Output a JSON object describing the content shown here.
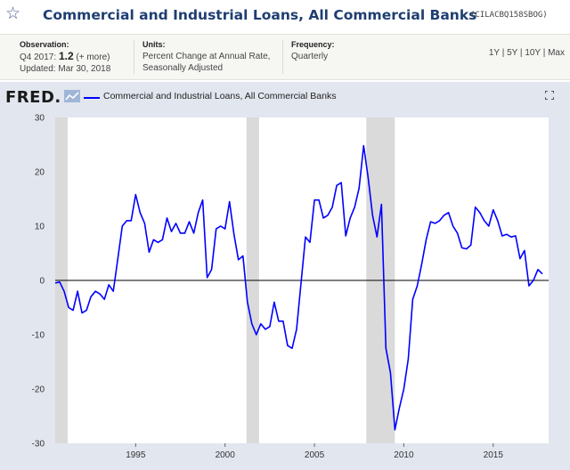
{
  "header": {
    "title": "Commercial and Industrial Loans, All Commercial Banks",
    "series_id": "(CILACBQ158SBOG)"
  },
  "meta": {
    "observation_label": "Observation:",
    "observation_period": "Q4 2017:",
    "observation_value": "1.2",
    "observation_more": "(+ more)",
    "updated": "Updated: Mar 30, 2018",
    "units_label": "Units:",
    "units_line1": "Percent Change at Annual Rate,",
    "units_line2": "Seasonally Adjusted",
    "frequency_label": "Frequency:",
    "frequency_value": "Quarterly"
  },
  "ranges": [
    "1Y",
    "5Y",
    "10Y",
    "Max"
  ],
  "logo": "FRED",
  "colors": {
    "series": "#0000ff",
    "title": "#1f3e72",
    "recession": "#dadada",
    "plot_bg": "#ffffff",
    "frame_bg": "#e2e6ef"
  },
  "chart_data": {
    "type": "line",
    "title": "Commercial and Industrial Loans, All Commercial Banks",
    "ylabel": "",
    "xlabel": "",
    "ylim": [
      -30,
      30
    ],
    "xlim": [
      1990.5,
      2018.1
    ],
    "y_ticks": [
      30,
      20,
      10,
      0,
      -10,
      -20,
      -30
    ],
    "x_ticks": [
      1995,
      2000,
      2005,
      2010,
      2015
    ],
    "zero_line": true,
    "recessions": [
      [
        1990.5,
        1991.2
      ],
      [
        2001.2,
        2001.9
      ],
      [
        2007.9,
        2009.5
      ]
    ],
    "series": [
      {
        "name": "Commercial and Industrial Loans, All Commercial Banks",
        "x": [
          1990.5,
          1990.75,
          1991.0,
          1991.25,
          1991.5,
          1991.75,
          1992.0,
          1992.25,
          1992.5,
          1992.75,
          1993.0,
          1993.25,
          1993.5,
          1993.75,
          1994.0,
          1994.25,
          1994.5,
          1994.75,
          1995.0,
          1995.25,
          1995.5,
          1995.75,
          1996.0,
          1996.25,
          1996.5,
          1996.75,
          1997.0,
          1997.25,
          1997.5,
          1997.75,
          1998.0,
          1998.25,
          1998.5,
          1998.75,
          1999.0,
          1999.25,
          1999.5,
          1999.75,
          2000.0,
          2000.25,
          2000.5,
          2000.75,
          2001.0,
          2001.25,
          2001.5,
          2001.75,
          2002.0,
          2002.25,
          2002.5,
          2002.75,
          2003.0,
          2003.25,
          2003.5,
          2003.75,
          2004.0,
          2004.25,
          2004.5,
          2004.75,
          2005.0,
          2005.25,
          2005.5,
          2005.75,
          2006.0,
          2006.25,
          2006.5,
          2006.75,
          2007.0,
          2007.25,
          2007.5,
          2007.75,
          2008.0,
          2008.25,
          2008.5,
          2008.75,
          2009.0,
          2009.25,
          2009.5,
          2009.75,
          2010.0,
          2010.25,
          2010.5,
          2010.75,
          2011.0,
          2011.25,
          2011.5,
          2011.75,
          2012.0,
          2012.25,
          2012.5,
          2012.75,
          2013.0,
          2013.25,
          2013.5,
          2013.75,
          2014.0,
          2014.25,
          2014.5,
          2014.75,
          2015.0,
          2015.25,
          2015.5,
          2015.75,
          2016.0,
          2016.25,
          2016.5,
          2016.75,
          2017.0,
          2017.25,
          2017.5,
          2017.75
        ],
        "y": [
          -0.5,
          -0.3,
          -2.0,
          -5.0,
          -5.5,
          -2.0,
          -6.0,
          -5.5,
          -3.0,
          -2.0,
          -2.5,
          -3.5,
          -0.8,
          -2.0,
          4.0,
          10.0,
          11.0,
          11.0,
          15.8,
          12.5,
          10.5,
          5.2,
          7.5,
          7.0,
          7.5,
          11.5,
          9.0,
          10.5,
          8.7,
          8.7,
          10.8,
          8.7,
          12.5,
          14.8,
          0.5,
          2.0,
          9.5,
          10.0,
          9.5,
          14.5,
          8.5,
          3.8,
          4.5,
          -4.0,
          -8.0,
          -10.0,
          -8.0,
          -9.0,
          -8.5,
          -4.0,
          -7.5,
          -7.5,
          -12.0,
          -12.5,
          -9.0,
          -0.5,
          8.0,
          7.0,
          14.8,
          14.8,
          11.5,
          12.0,
          13.5,
          17.5,
          18.0,
          8.2,
          11.5,
          13.5,
          17.0,
          24.8,
          19.0,
          12.0,
          8.0,
          14.0,
          -12.5,
          -17.0,
          -27.5,
          -23.5,
          -20.0,
          -14.5,
          -3.5,
          -1.0,
          3.0,
          7.5,
          10.8,
          10.5,
          11.0,
          12.0,
          12.5,
          10.0,
          8.7,
          6.0,
          5.8,
          6.5,
          13.5,
          12.5,
          11.0,
          10.0,
          13.0,
          11.0,
          8.2,
          8.5,
          8.0,
          8.2,
          4.0,
          5.5,
          -1.0,
          0.0,
          2.0,
          1.2
        ]
      }
    ]
  }
}
